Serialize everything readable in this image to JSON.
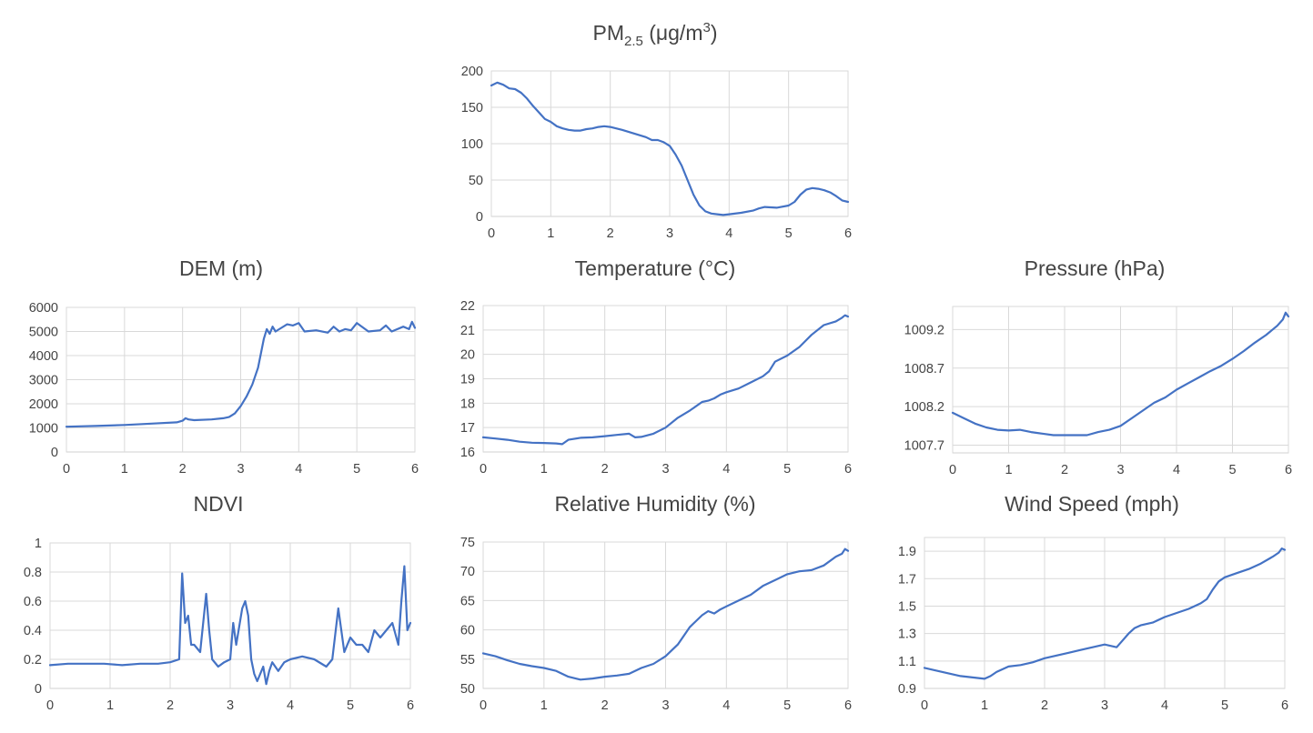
{
  "figure_colors": {
    "line": "#4472C4",
    "grid": "#D9D9D9",
    "text": "#444444"
  },
  "chart_data": [
    {
      "id": "pm25",
      "type": "line",
      "title": "PM",
      "title_subscript": "2.5",
      "title_unit": " (μg/m",
      "title_superscript": "3",
      "title_close": ")",
      "xlim": [
        0,
        6
      ],
      "ylim": [
        0,
        200
      ],
      "xticks": [
        "0",
        "1",
        "2",
        "3",
        "4",
        "5",
        "6"
      ],
      "yticks": [
        "0",
        "50",
        "100",
        "150",
        "200"
      ],
      "grid": true,
      "x": [
        0,
        0.1,
        0.2,
        0.3,
        0.4,
        0.5,
        0.6,
        0.7,
        0.8,
        0.9,
        1.0,
        1.1,
        1.2,
        1.3,
        1.4,
        1.5,
        1.6,
        1.7,
        1.8,
        1.9,
        2.0,
        2.2,
        2.4,
        2.6,
        2.7,
        2.8,
        2.9,
        3.0,
        3.1,
        3.2,
        3.3,
        3.4,
        3.5,
        3.6,
        3.7,
        3.8,
        3.9,
        4.0,
        4.2,
        4.4,
        4.5,
        4.6,
        4.8,
        5.0,
        5.1,
        5.2,
        5.3,
        5.4,
        5.5,
        5.6,
        5.7,
        5.8,
        5.9,
        6.0
      ],
      "y": [
        180,
        184,
        181,
        176,
        175,
        170,
        162,
        152,
        143,
        134,
        130,
        124,
        121,
        119,
        118,
        118,
        120,
        121,
        123,
        124,
        123,
        119,
        114,
        109,
        105,
        105,
        102,
        97,
        85,
        70,
        50,
        30,
        15,
        7,
        4,
        3,
        2,
        3,
        5,
        8,
        11,
        13,
        12,
        15,
        20,
        30,
        37,
        39,
        38,
        36,
        33,
        28,
        22,
        20
      ]
    },
    {
      "id": "dem",
      "type": "line",
      "title": "DEM (m)",
      "xlim": [
        0,
        6
      ],
      "ylim": [
        0,
        6000
      ],
      "xticks": [
        "0",
        "1",
        "2",
        "3",
        "4",
        "5",
        "6"
      ],
      "yticks": [
        "0",
        "1000",
        "2000",
        "3000",
        "4000",
        "5000",
        "6000"
      ],
      "grid": true,
      "x": [
        0,
        0.5,
        1.0,
        1.5,
        1.9,
        2.0,
        2.05,
        2.1,
        2.2,
        2.5,
        2.7,
        2.8,
        2.9,
        3.0,
        3.1,
        3.2,
        3.3,
        3.35,
        3.4,
        3.45,
        3.5,
        3.55,
        3.6,
        3.7,
        3.8,
        3.9,
        4.0,
        4.1,
        4.3,
        4.5,
        4.6,
        4.7,
        4.8,
        4.9,
        5.0,
        5.2,
        5.4,
        5.5,
        5.6,
        5.8,
        5.9,
        5.95,
        6.0
      ],
      "y": [
        1050,
        1080,
        1120,
        1180,
        1230,
        1300,
        1400,
        1350,
        1320,
        1350,
        1400,
        1450,
        1600,
        1900,
        2300,
        2800,
        3500,
        4100,
        4700,
        5100,
        4900,
        5200,
        5000,
        5150,
        5300,
        5250,
        5350,
        5000,
        5050,
        4950,
        5200,
        5000,
        5100,
        5050,
        5350,
        5000,
        5050,
        5250,
        5000,
        5200,
        5100,
        5400,
        5150
      ]
    },
    {
      "id": "temperature",
      "type": "line",
      "title": "Temperature (°C)",
      "xlim": [
        0,
        6
      ],
      "ylim": [
        16,
        22
      ],
      "xticks": [
        "0",
        "1",
        "2",
        "3",
        "4",
        "5",
        "6"
      ],
      "yticks": [
        "16",
        "17",
        "18",
        "19",
        "20",
        "21",
        "22"
      ],
      "grid": true,
      "x": [
        0,
        0.2,
        0.4,
        0.6,
        0.8,
        1.0,
        1.2,
        1.3,
        1.4,
        1.6,
        1.8,
        2.0,
        2.2,
        2.4,
        2.5,
        2.6,
        2.8,
        3.0,
        3.2,
        3.4,
        3.6,
        3.7,
        3.8,
        3.9,
        4.0,
        4.2,
        4.4,
        4.6,
        4.7,
        4.8,
        5.0,
        5.2,
        5.4,
        5.6,
        5.8,
        5.9,
        5.95,
        6.0
      ],
      "y": [
        16.6,
        16.55,
        16.5,
        16.42,
        16.38,
        16.37,
        16.35,
        16.32,
        16.5,
        16.58,
        16.6,
        16.65,
        16.7,
        16.75,
        16.6,
        16.62,
        16.75,
        17.0,
        17.4,
        17.7,
        18.05,
        18.1,
        18.2,
        18.35,
        18.45,
        18.6,
        18.85,
        19.1,
        19.3,
        19.7,
        19.95,
        20.3,
        20.8,
        21.2,
        21.35,
        21.5,
        21.6,
        21.55
      ]
    },
    {
      "id": "pressure",
      "type": "line",
      "title": "Pressure (hPa)",
      "xlim": [
        0,
        6
      ],
      "ylim": [
        1007.6,
        1009.5
      ],
      "xticks": [
        "0",
        "1",
        "2",
        "3",
        "4",
        "5",
        "6"
      ],
      "ytick_values": [
        1007.7,
        1008.2,
        1008.7,
        1009.2
      ],
      "yticks": [
        "1007.7",
        "1008.2",
        "1008.7",
        "1009.2"
      ],
      "grid": true,
      "x": [
        0,
        0.2,
        0.4,
        0.6,
        0.8,
        1.0,
        1.2,
        1.4,
        1.6,
        1.8,
        2.0,
        2.2,
        2.4,
        2.6,
        2.8,
        3.0,
        3.2,
        3.4,
        3.6,
        3.8,
        4.0,
        4.2,
        4.4,
        4.6,
        4.8,
        5.0,
        5.2,
        5.4,
        5.6,
        5.8,
        5.9,
        5.95,
        6.0
      ],
      "y": [
        1008.12,
        1008.05,
        1007.98,
        1007.93,
        1007.9,
        1007.89,
        1007.9,
        1007.87,
        1007.85,
        1007.83,
        1007.83,
        1007.83,
        1007.83,
        1007.87,
        1007.9,
        1007.95,
        1008.05,
        1008.15,
        1008.25,
        1008.32,
        1008.42,
        1008.5,
        1008.58,
        1008.66,
        1008.73,
        1008.82,
        1008.92,
        1009.03,
        1009.13,
        1009.25,
        1009.33,
        1009.42,
        1009.37
      ]
    },
    {
      "id": "ndvi",
      "type": "line",
      "title": "NDVI",
      "xlim": [
        0,
        6
      ],
      "ylim": [
        0,
        1
      ],
      "xticks": [
        "0",
        "1",
        "2",
        "3",
        "4",
        "5",
        "6"
      ],
      "yticks": [
        "0",
        "0.2",
        "0.4",
        "0.6",
        "0.8",
        "1"
      ],
      "grid": true,
      "x": [
        0,
        0.3,
        0.6,
        0.9,
        1.2,
        1.5,
        1.8,
        2.0,
        2.15,
        2.2,
        2.25,
        2.3,
        2.35,
        2.4,
        2.5,
        2.6,
        2.65,
        2.7,
        2.8,
        2.9,
        3.0,
        3.05,
        3.1,
        3.2,
        3.25,
        3.3,
        3.35,
        3.4,
        3.45,
        3.5,
        3.55,
        3.6,
        3.65,
        3.7,
        3.75,
        3.8,
        3.9,
        4.0,
        4.2,
        4.4,
        4.6,
        4.7,
        4.8,
        4.9,
        5.0,
        5.1,
        5.2,
        5.3,
        5.4,
        5.5,
        5.6,
        5.7,
        5.8,
        5.85,
        5.9,
        5.95,
        6.0
      ],
      "y": [
        0.16,
        0.17,
        0.17,
        0.17,
        0.16,
        0.17,
        0.17,
        0.18,
        0.2,
        0.79,
        0.45,
        0.5,
        0.3,
        0.3,
        0.25,
        0.65,
        0.4,
        0.2,
        0.15,
        0.18,
        0.2,
        0.45,
        0.3,
        0.55,
        0.6,
        0.5,
        0.2,
        0.1,
        0.05,
        0.1,
        0.15,
        0.03,
        0.12,
        0.18,
        0.15,
        0.12,
        0.18,
        0.2,
        0.22,
        0.2,
        0.15,
        0.2,
        0.55,
        0.25,
        0.35,
        0.3,
        0.3,
        0.25,
        0.4,
        0.35,
        0.4,
        0.45,
        0.3,
        0.6,
        0.84,
        0.4,
        0.45
      ]
    },
    {
      "id": "relative_humidity",
      "type": "line",
      "title": "Relative Humidity (%)",
      "xlim": [
        0,
        6
      ],
      "ylim": [
        50,
        75
      ],
      "xticks": [
        "0",
        "1",
        "2",
        "3",
        "4",
        "5",
        "6"
      ],
      "yticks": [
        "50",
        "55",
        "60",
        "65",
        "70",
        "75"
      ],
      "grid": true,
      "x": [
        0,
        0.2,
        0.4,
        0.6,
        0.8,
        1.0,
        1.2,
        1.4,
        1.6,
        1.8,
        2.0,
        2.2,
        2.4,
        2.6,
        2.8,
        3.0,
        3.2,
        3.4,
        3.6,
        3.7,
        3.8,
        3.9,
        4.0,
        4.2,
        4.4,
        4.6,
        4.8,
        5.0,
        5.2,
        5.4,
        5.6,
        5.8,
        5.9,
        5.95,
        6.0
      ],
      "y": [
        56,
        55.5,
        54.8,
        54.2,
        53.8,
        53.5,
        53,
        52,
        51.5,
        51.7,
        52,
        52.2,
        52.5,
        53.5,
        54.2,
        55.5,
        57.5,
        60.5,
        62.5,
        63.2,
        62.8,
        63.5,
        64,
        65,
        66,
        67.5,
        68.5,
        69.5,
        70,
        70.2,
        71,
        72.5,
        73,
        73.8,
        73.5
      ]
    },
    {
      "id": "wind_speed",
      "type": "line",
      "title": "Wind Speed (mph)",
      "xlim": [
        0,
        6
      ],
      "ylim": [
        0.9,
        2.0
      ],
      "xticks": [
        "0",
        "1",
        "2",
        "3",
        "4",
        "5",
        "6"
      ],
      "ytick_values": [
        0.9,
        1.1,
        1.3,
        1.5,
        1.7,
        1.9
      ],
      "yticks": [
        "0.9",
        "1.1",
        "1.3",
        "1.5",
        "1.7",
        "1.9"
      ],
      "grid": true,
      "x": [
        0,
        0.2,
        0.4,
        0.6,
        0.8,
        1.0,
        1.1,
        1.2,
        1.4,
        1.6,
        1.8,
        2.0,
        2.2,
        2.4,
        2.6,
        2.8,
        3.0,
        3.1,
        3.2,
        3.3,
        3.4,
        3.5,
        3.6,
        3.8,
        4.0,
        4.2,
        4.4,
        4.6,
        4.7,
        4.8,
        4.9,
        5.0,
        5.2,
        5.4,
        5.6,
        5.8,
        5.9,
        5.95,
        6.0
      ],
      "y": [
        1.05,
        1.03,
        1.01,
        0.99,
        0.98,
        0.97,
        0.99,
        1.02,
        1.06,
        1.07,
        1.09,
        1.12,
        1.14,
        1.16,
        1.18,
        1.2,
        1.22,
        1.21,
        1.2,
        1.25,
        1.3,
        1.34,
        1.36,
        1.38,
        1.42,
        1.45,
        1.48,
        1.52,
        1.55,
        1.62,
        1.68,
        1.71,
        1.74,
        1.77,
        1.81,
        1.86,
        1.89,
        1.92,
        1.91
      ]
    }
  ]
}
